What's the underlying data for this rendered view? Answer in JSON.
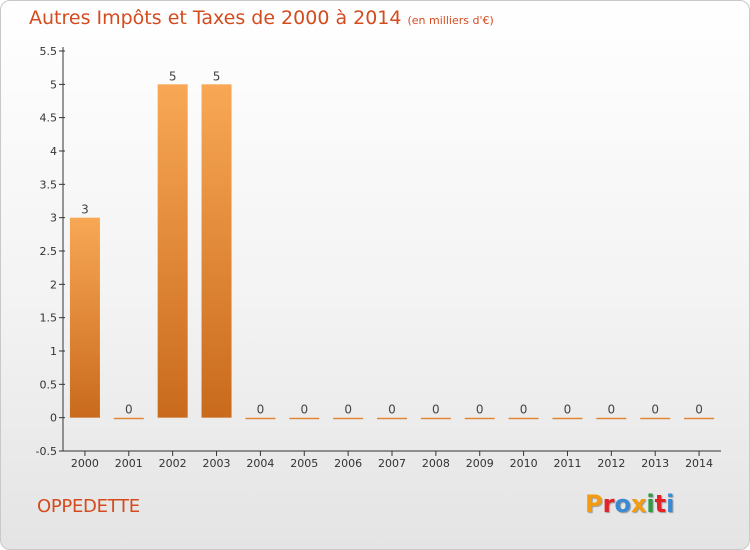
{
  "header": {
    "title": "Autres Impôts et Taxes de 2000 à 2014",
    "unit": "(en milliers d'€)"
  },
  "commune": "OPPEDETTE",
  "logo": {
    "text": "Proxiti",
    "letter_colors": [
      "#f39c12",
      "#e2242a",
      "#3a8ad3",
      "#f39c12",
      "#2d9a46",
      "#e2242a",
      "#3a8ad3"
    ]
  },
  "chart_data": {
    "type": "bar",
    "categories": [
      "2000",
      "2001",
      "2002",
      "2003",
      "2004",
      "2005",
      "2006",
      "2007",
      "2008",
      "2009",
      "2010",
      "2011",
      "2012",
      "2013",
      "2014"
    ],
    "values": [
      3,
      0,
      5,
      5,
      0,
      0,
      0,
      0,
      0,
      0,
      0,
      0,
      0,
      0,
      0
    ],
    "ylim": [
      -0.5,
      5.5
    ],
    "yticks": [
      -0.5,
      0,
      0.5,
      1,
      1.5,
      2,
      2.5,
      3,
      3.5,
      4,
      4.5,
      5,
      5.5
    ],
    "ytick_labels": [
      "-0.5",
      "0",
      "0.5",
      "1",
      "1.5",
      "2",
      "2.5",
      "3",
      "3.5",
      "4",
      "4.5",
      "5",
      "5.5"
    ],
    "bar_color_light": "#f8a855",
    "bar_color_dark": "#c96a1c",
    "grid": false
  }
}
